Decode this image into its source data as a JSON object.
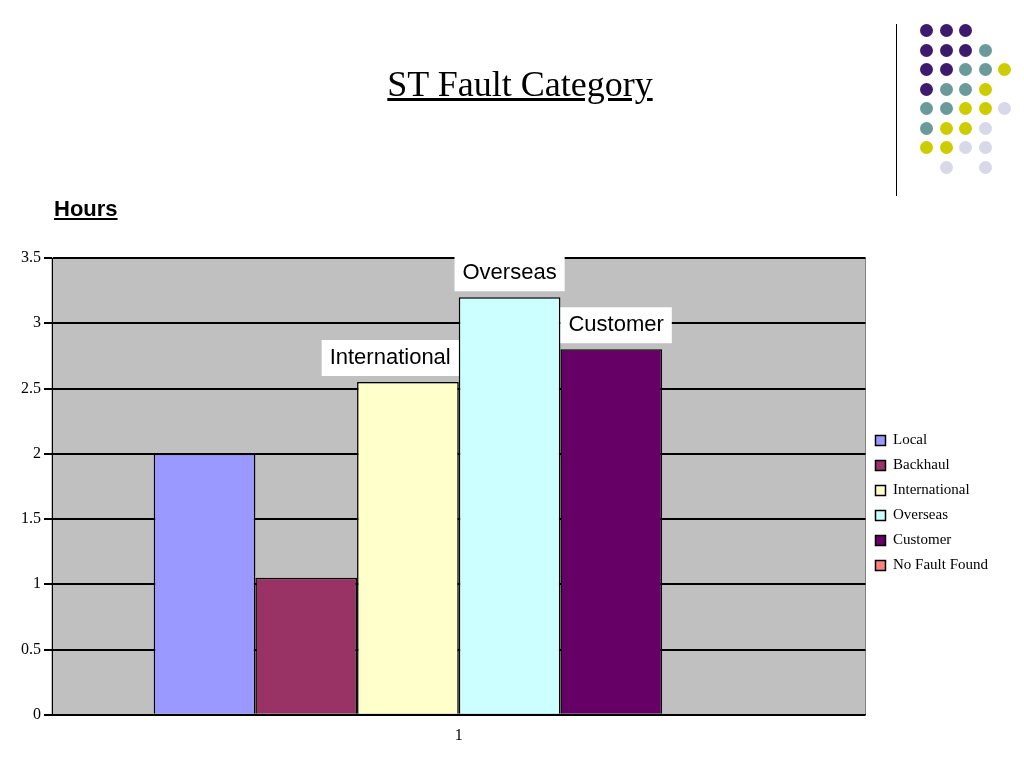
{
  "chart_data": {
    "type": "bar",
    "title": "ST Fault Category",
    "ylabel": "Hours",
    "categories": [
      "1"
    ],
    "series": [
      {
        "name": "Local",
        "color": "#9999ff",
        "values": [
          2.0
        ]
      },
      {
        "name": "Backhaul",
        "color": "#993366",
        "values": [
          1.05
        ]
      },
      {
        "name": "International",
        "color": "#ffffcc",
        "values": [
          2.55
        ]
      },
      {
        "name": "Overseas",
        "color": "#ccffff",
        "values": [
          3.2
        ]
      },
      {
        "name": "Customer",
        "color": "#660066",
        "values": [
          2.8
        ]
      },
      {
        "name": "No Fault Found",
        "color": "#ff8080",
        "values": [
          0
        ]
      }
    ],
    "annotations": [
      {
        "text": "International",
        "y": 2.55
      },
      {
        "text": "Overseas",
        "y": 3.2
      },
      {
        "text": "Customer",
        "y": 2.8
      }
    ],
    "ylim": [
      0,
      3.5
    ],
    "yticks": [
      0,
      0.5,
      1,
      1.5,
      2,
      2.5,
      3,
      3.5
    ],
    "grid": "y",
    "legend": "right"
  }
}
